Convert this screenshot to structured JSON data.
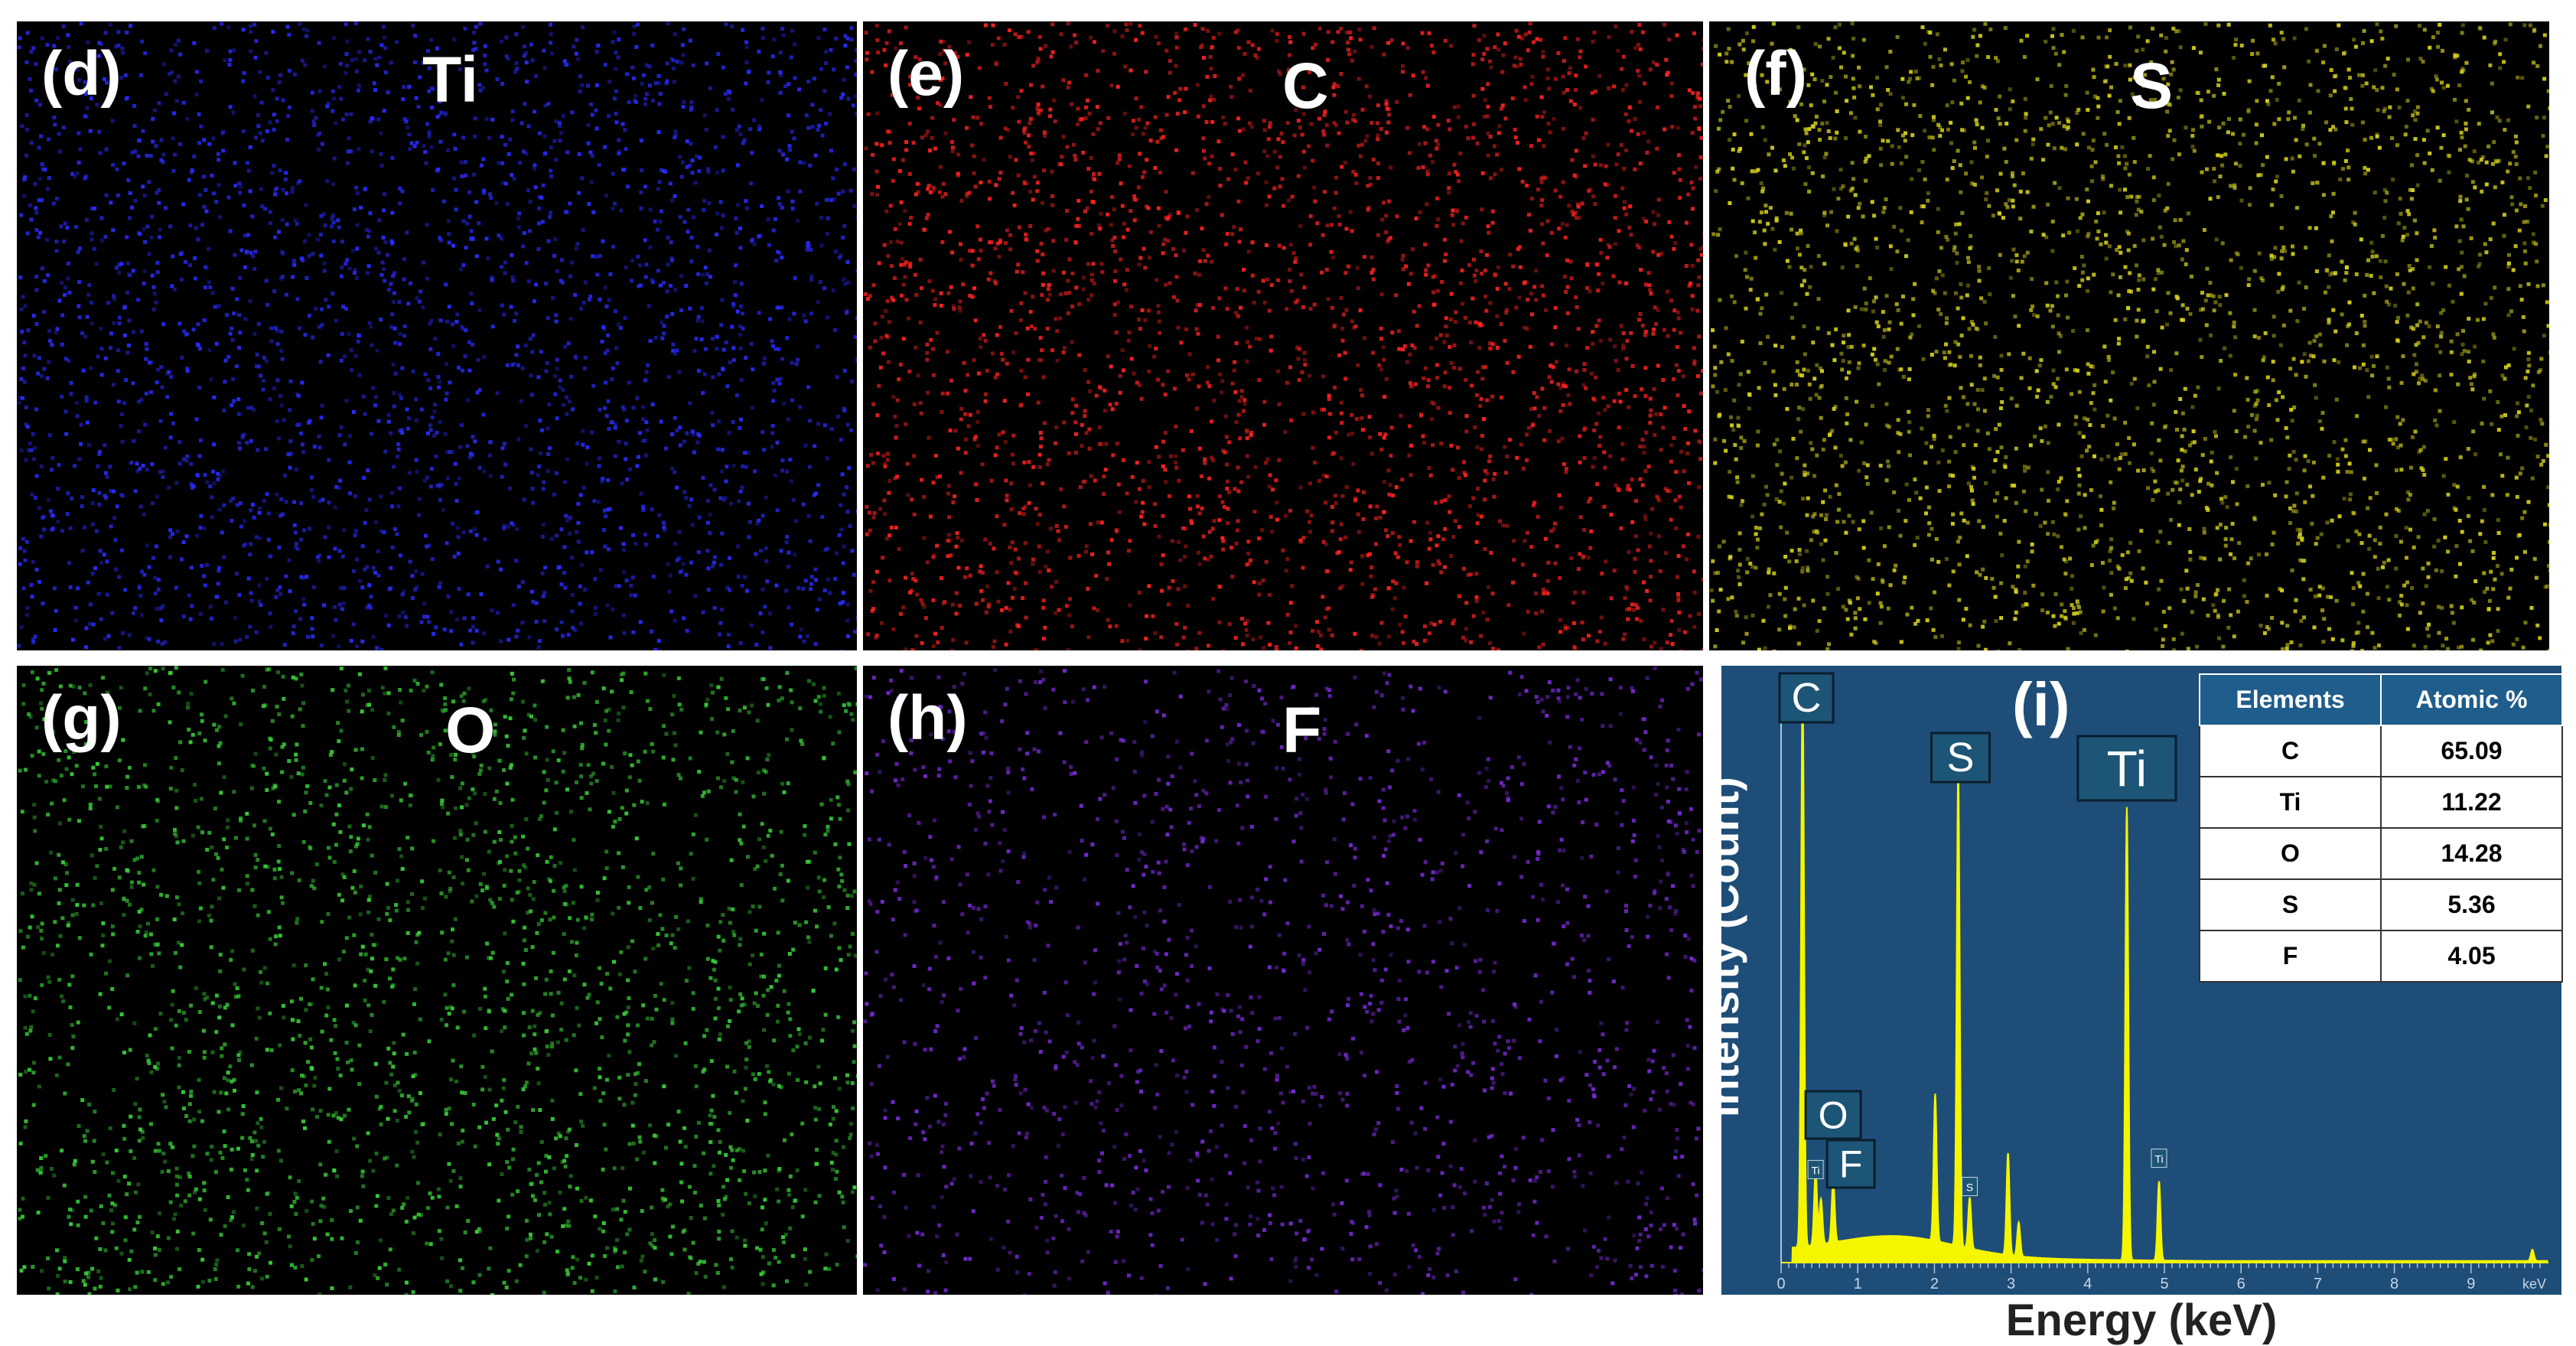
{
  "maps": [
    {
      "id": "d",
      "label": "(d)",
      "element": "Ti",
      "color": "#2a2cff"
    },
    {
      "id": "e",
      "label": "(e)",
      "element": "C",
      "color": "#ff2222"
    },
    {
      "id": "f",
      "label": "(f)",
      "element": "S",
      "color": "#d9d51e"
    },
    {
      "id": "g",
      "label": "(g)",
      "element": "O",
      "color": "#3ad23a"
    },
    {
      "id": "h",
      "label": "(h)",
      "element": "F",
      "color": "#7a2bd9"
    }
  ],
  "chart_data": {
    "type": "line",
    "panel_label": "(i)",
    "xlabel": "Energy (keV)",
    "ylabel": "Intensity (Count)",
    "x_unit_tick": "keV",
    "xlim": [
      0,
      10
    ],
    "x_ticks": [
      "0",
      "1",
      "2",
      "3",
      "4",
      "5",
      "6",
      "7",
      "8",
      "9"
    ],
    "series": [
      {
        "name": "",
        "color": "#f5f500",
        "peaks": [
          {
            "x": 0.28,
            "y": 100
          },
          {
            "x": 0.45,
            "y": 13
          },
          {
            "x": 0.52,
            "y": 8
          },
          {
            "x": 0.68,
            "y": 11
          },
          {
            "x": 2.01,
            "y": 26
          },
          {
            "x": 2.31,
            "y": 84
          },
          {
            "x": 2.46,
            "y": 9
          },
          {
            "x": 2.96,
            "y": 18
          },
          {
            "x": 3.1,
            "y": 6
          },
          {
            "x": 4.51,
            "y": 80
          },
          {
            "x": 4.93,
            "y": 14
          },
          {
            "x": 9.8,
            "y": 2
          }
        ]
      }
    ],
    "peak_labels": [
      {
        "text": "C",
        "x": 0.28
      },
      {
        "text": "S",
        "x": 2.31
      },
      {
        "text": "Ti",
        "x": 4.51
      },
      {
        "text": "O",
        "x": 0.52
      },
      {
        "text": "F",
        "x": 0.68
      }
    ],
    "small_labels": [
      "Ti",
      "S",
      "Ti"
    ],
    "table": {
      "headers": [
        "Elements",
        "Atomic %"
      ],
      "rows": [
        [
          "C",
          "65.09"
        ],
        [
          "Ti",
          "11.22"
        ],
        [
          "O",
          "14.28"
        ],
        [
          "S",
          "5.36"
        ],
        [
          "F",
          "4.05"
        ]
      ]
    }
  }
}
